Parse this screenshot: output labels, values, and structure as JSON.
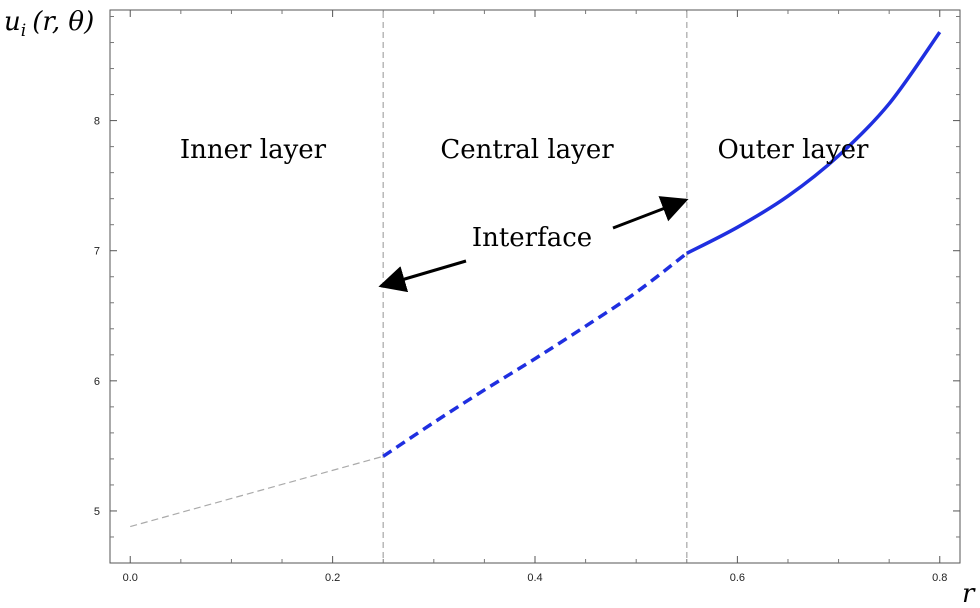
{
  "chart_data": {
    "type": "line",
    "title": "",
    "xlabel": "r",
    "ylabel": "u_i (r, θ)",
    "ylabel_parts": {
      "u": "u",
      "sub": "i",
      "args": "(r, θ)"
    },
    "xlim": [
      -0.02,
      0.82
    ],
    "ylim": [
      4.6,
      8.85
    ],
    "xticks": [
      0.0,
      0.2,
      0.4,
      0.6,
      0.8
    ],
    "xtick_labels": [
      "0.0",
      "0.2",
      "0.4",
      "0.6",
      "0.8"
    ],
    "yticks": [
      5,
      6,
      7,
      8
    ],
    "ytick_labels": [
      "5",
      "6",
      "7",
      "8"
    ],
    "grid": false,
    "interfaces": [
      0.25,
      0.55
    ],
    "region_labels": [
      "Inner layer",
      "Central layer",
      "Outer layer"
    ],
    "annotation": "Interface",
    "series": [
      {
        "style": "thin-dashed",
        "color": "#aaaaaa",
        "x": [
          0.0,
          0.25
        ],
        "y": [
          4.88,
          5.42
        ]
      },
      {
        "style": "thick-dashed",
        "color": "#1f2fe0",
        "x": [
          0.25,
          0.3,
          0.35,
          0.4,
          0.45,
          0.5,
          0.55
        ],
        "y": [
          5.42,
          5.68,
          5.93,
          6.17,
          6.42,
          6.68,
          6.98
        ]
      },
      {
        "style": "solid",
        "color": "#1f2fe0",
        "x": [
          0.55,
          0.6,
          0.65,
          0.7,
          0.75,
          0.8
        ],
        "y": [
          6.98,
          7.18,
          7.42,
          7.73,
          8.13,
          8.68
        ]
      }
    ]
  }
}
